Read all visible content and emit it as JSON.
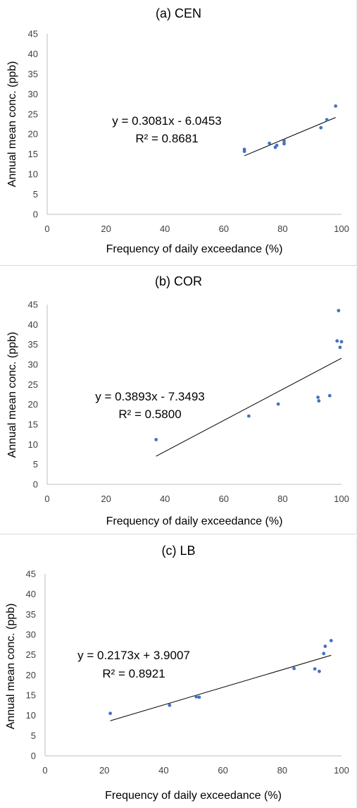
{
  "chart_data": [
    {
      "type": "scatter",
      "title": "(a) CEN",
      "xlabel": "Frequency of daily exceedance (%)",
      "ylabel": "Annual mean conc. (ppb)",
      "xlim": [
        0,
        100
      ],
      "ylim": [
        0,
        45
      ],
      "x_ticks": [
        "0",
        "20",
        "40",
        "60",
        "80",
        "100"
      ],
      "y_ticks": [
        "0",
        "5",
        "10",
        "15",
        "20",
        "25",
        "30",
        "35",
        "40",
        "45"
      ],
      "grid": false,
      "legend": "none",
      "marker_color": "#4472c4",
      "series": [
        {
          "x": [
            67,
            67,
            75.5,
            77.5,
            78,
            80.5,
            80.5,
            93,
            95,
            98
          ],
          "y": [
            16.2,
            15.7,
            17.7,
            16.7,
            17.2,
            17.6,
            18.3,
            21.6,
            23.6,
            27
          ]
        }
      ],
      "trendline": {
        "slope": 0.3081,
        "intercept": -6.0453,
        "x_range": [
          67,
          98
        ]
      },
      "annotation": {
        "equation": "y = 0.3081x - 6.0453",
        "r_squared": "R² = 0.8681"
      }
    },
    {
      "type": "scatter",
      "title": "(b) COR",
      "xlabel": "Frequency of daily exceedance (%)",
      "ylabel": "Annual mean conc. (ppb)",
      "xlim": [
        0,
        100
      ],
      "ylim": [
        0,
        45
      ],
      "x_ticks": [
        "0",
        "20",
        "40",
        "60",
        "80",
        "100"
      ],
      "y_ticks": [
        "0",
        "5",
        "10",
        "15",
        "20",
        "25",
        "30",
        "35",
        "40",
        "45"
      ],
      "grid": false,
      "legend": "none",
      "marker_color": "#4472c4",
      "series": [
        {
          "x": [
            37,
            68.5,
            78.5,
            92,
            92.3,
            96,
            98.5,
            99,
            99.5,
            100
          ],
          "y": [
            11.2,
            17.1,
            20.1,
            21.8,
            20.9,
            22.2,
            35.9,
            43.5,
            34.3,
            35.7
          ]
        }
      ],
      "trendline": {
        "slope": 0.3893,
        "intercept": -7.3493,
        "x_range": [
          37,
          100
        ]
      },
      "annotation": {
        "equation": "y = 0.3893x - 7.3493",
        "r_squared": "R² = 0.5800"
      }
    },
    {
      "type": "scatter",
      "title": "(c) LB",
      "xlabel": "Frequency of daily exceedance (%)",
      "ylabel": "Annual mean conc. (ppb)",
      "xlim": [
        0,
        100
      ],
      "ylim": [
        0,
        45
      ],
      "x_ticks": [
        "0",
        "20",
        "40",
        "60",
        "80",
        "100"
      ],
      "y_ticks": [
        "0",
        "5",
        "10",
        "15",
        "20",
        "25",
        "30",
        "35",
        "40",
        "45"
      ],
      "grid": false,
      "legend": "none",
      "marker_color": "#4472c4",
      "series": [
        {
          "x": [
            22,
            42,
            51,
            52,
            84,
            91,
            92.5,
            94,
            94.5,
            96.5
          ],
          "y": [
            10.5,
            12.5,
            14.6,
            14.5,
            21.6,
            21.5,
            20.9,
            25.3,
            27.1,
            28.5
          ]
        }
      ],
      "trendline": {
        "slope": 0.2173,
        "intercept": 3.9007,
        "x_range": [
          22,
          96.5
        ]
      },
      "annotation": {
        "equation": "y = 0.2173x + 3.9007",
        "r_squared": "R² = 0.8921"
      }
    }
  ]
}
